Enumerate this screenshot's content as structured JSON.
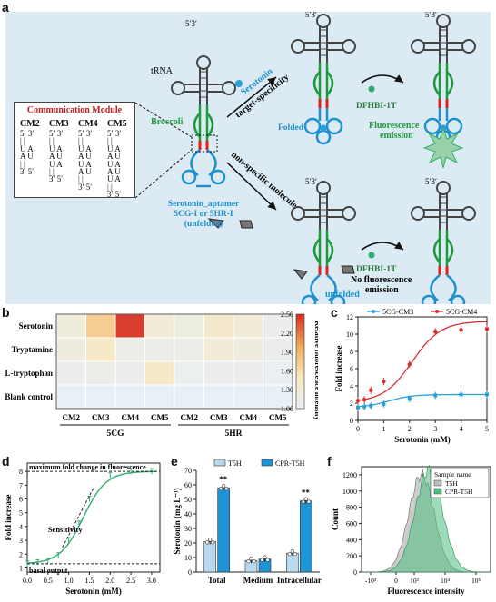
{
  "panels": {
    "a": "a",
    "b": "b",
    "c": "c",
    "d": "d",
    "e": "e",
    "f": "f"
  },
  "panel_a": {
    "communication_module_title": "Communication Module",
    "modules": [
      {
        "name": "CM2",
        "lines": [
          "5′ 3′",
          "| |",
          "U A",
          "A U",
          "| |",
          "3′ 5′"
        ]
      },
      {
        "name": "CM3",
        "lines": [
          "5′ 3′",
          "| |",
          "U A",
          "A U",
          "U A",
          "| |",
          "3′ 5′"
        ]
      },
      {
        "name": "CM4",
        "lines": [
          "5′ 3′",
          "| |",
          "U A",
          "A U",
          "U A",
          "A U",
          "| |",
          "3′ 5′"
        ]
      },
      {
        "name": "CM5",
        "lines": [
          "5′ 3′",
          "| |",
          "U A",
          "A U",
          "U A",
          "A U",
          "U A",
          "| |",
          "3′ 5′"
        ]
      }
    ],
    "ends": "5′3′",
    "trna": "tRNA",
    "broccoli": "Broccoli",
    "aptamer_l1": "Serotonin_aptamer",
    "aptamer_l2": "5CG-I or 5HR-I",
    "aptamer_l3": "(unfolded)",
    "serotonin": "Serotonin",
    "target_specificity": "target-specificity",
    "folded": "Folded",
    "dfhbi": "DFHBI-1T",
    "fluor_l1": "Fluorescence",
    "fluor_l2": "emission",
    "non_specific": "non-specific molecule",
    "dfhbi2": "DFHBI-1T",
    "nofluor_l1": "No fluorescence",
    "nofluor_l2": "emission",
    "unfolded": "unfolded"
  },
  "heatmap": {
    "rows": [
      "Serotonin",
      "Tryptamine",
      "L-tryptophan",
      "Blank control"
    ],
    "cols": [
      "CM2",
      "CM3",
      "CM4",
      "CM5",
      "CM2",
      "CM3",
      "CM4",
      "CM5"
    ],
    "group_labels": [
      "5CG",
      "5HR"
    ],
    "values": [
      [
        1.25,
        1.75,
        2.45,
        1.3,
        1.2,
        1.4,
        1.3,
        1.1
      ],
      [
        1.22,
        1.45,
        1.12,
        1.15,
        1.15,
        1.3,
        1.22,
        1.1
      ],
      [
        1.1,
        1.15,
        1.1,
        1.45,
        1.08,
        1.1,
        1.1,
        1.05
      ],
      [
        1.0,
        1.0,
        1.0,
        1.0,
        1.0,
        1.0,
        1.0,
        1.0
      ]
    ],
    "colorbar_label": "Relative fluorescence intensity",
    "colorbar_ticks": [
      "1.00",
      "1.30",
      "1.60",
      "1.90",
      "2.20",
      "2.50"
    ]
  },
  "chart_data": [
    {
      "type": "line",
      "panel": "c",
      "xlabel": "Serotonin (mM)",
      "ylabel": "Fold increase",
      "xlim": [
        0,
        5
      ],
      "ylim": [
        0,
        12
      ],
      "xticks": [
        "0",
        "1",
        "2",
        "3",
        "4",
        "5"
      ],
      "yticks": [
        "0",
        "2",
        "4",
        "6",
        "8",
        "10",
        "12"
      ],
      "series": [
        {
          "name": "5CG-CM3",
          "color": "#2b9fd8",
          "x": [
            0,
            0.25,
            0.5,
            1,
            2,
            3,
            4,
            5
          ],
          "y": [
            1.5,
            1.6,
            1.7,
            1.9,
            2.5,
            2.9,
            3.0,
            3.0
          ]
        },
        {
          "name": "5CG-CM4",
          "color": "#d83030",
          "x": [
            0,
            0.25,
            0.5,
            1,
            2,
            3,
            4,
            5
          ],
          "y": [
            2.3,
            2.4,
            3.5,
            4.5,
            6.5,
            10.3,
            10.5,
            10.6
          ]
        }
      ]
    },
    {
      "type": "line",
      "panel": "d",
      "xlabel": "Serotonin (mM)",
      "ylabel": "Fold increase",
      "xlim": [
        0,
        3.2
      ],
      "ylim": [
        0.7,
        8.6
      ],
      "xticks": [
        "0.0",
        "0.5",
        "1.0",
        "1.5",
        "2.0",
        "2.5",
        "3.0"
      ],
      "yticks": [
        "1",
        "2",
        "3",
        "4",
        "5",
        "6",
        "7",
        "8"
      ],
      "series": [
        {
          "name": "",
          "color": "#2eae6e",
          "x": [
            0,
            0.25,
            0.5,
            0.75,
            1.0,
            1.25,
            1.5,
            2.0,
            2.5,
            3.0
          ],
          "y": [
            1.3,
            1.4,
            1.5,
            1.9,
            3.0,
            4.2,
            6.0,
            7.7,
            8.0,
            8.0
          ]
        }
      ],
      "annotations": [
        "maximum fold change in fluorescence",
        "Sensitivity",
        "basal output"
      ]
    },
    {
      "type": "bar",
      "panel": "e",
      "categories": [
        "Total",
        "Medium",
        "Intracellular"
      ],
      "ylabel": "Serotonin (mg L⁻¹)",
      "ylim": [
        0,
        70
      ],
      "yticks": [
        "0",
        "10",
        "20",
        "30",
        "40",
        "50",
        "60",
        "70"
      ],
      "series": [
        {
          "name": "T5H",
          "color": "#b8d9ef",
          "values": [
            21,
            8,
            13
          ]
        },
        {
          "name": "CPR-T5H",
          "color": "#1e94d4",
          "values": [
            58,
            9,
            49
          ]
        }
      ],
      "significance": [
        "**",
        "**"
      ]
    },
    {
      "type": "area",
      "panel": "f",
      "xlabel": "Fluorescence intensity",
      "ylabel": "Count",
      "ylim": [
        0,
        1200
      ],
      "yticks": [
        "0",
        "200",
        "400",
        "600",
        "800",
        "1000",
        "1200"
      ],
      "xticks": [
        "-10³",
        "0",
        "10³",
        "10⁴",
        "10⁵"
      ],
      "legend_title": "Sample name",
      "series": [
        {
          "name": "T5H",
          "color": "#bcbcbc"
        },
        {
          "name": "CPR-T5H",
          "color": "#4fbf7f"
        }
      ]
    }
  ]
}
